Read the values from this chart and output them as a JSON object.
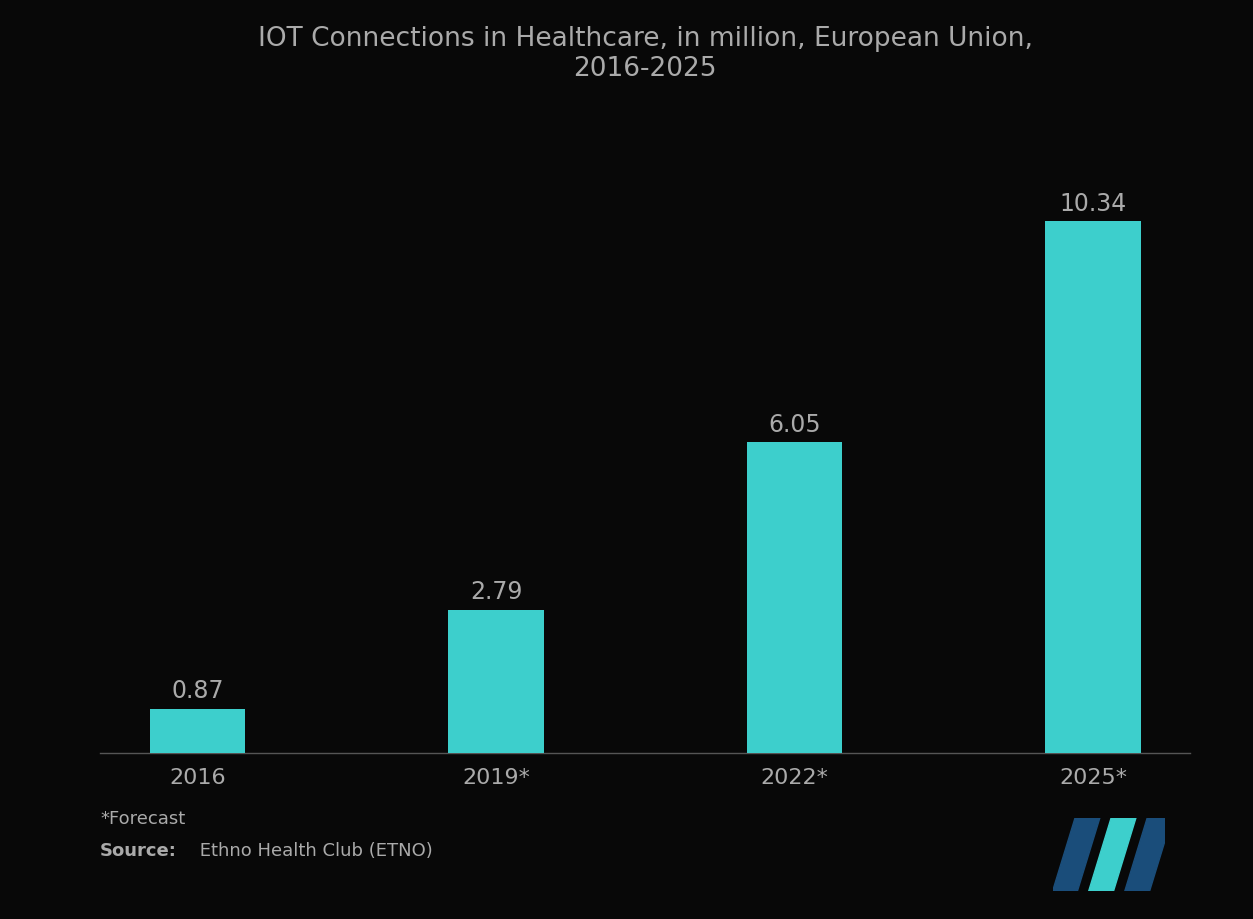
{
  "title": "IOT Connections in Healthcare, in million, European Union,\n2016-2025",
  "categories": [
    "2016",
    "2019*",
    "2022*",
    "2025*"
  ],
  "values": [
    0.87,
    2.79,
    6.05,
    10.34
  ],
  "bar_color": "#3DCFCC",
  "background_color": "#080808",
  "text_color": "#aaaaaa",
  "title_color": "#aaaaaa",
  "value_labels": [
    "0.87",
    "2.79",
    "6.05",
    "10.34"
  ],
  "footnote": "*Forecast",
  "source_bold": "Source:",
  "source_rest": " Ethno Health Club (ETNO)",
  "ylim": [
    0,
    12.5
  ],
  "bar_width": 0.32,
  "label_fontsize": 17,
  "tick_fontsize": 16,
  "title_fontsize": 19,
  "footnote_fontsize": 13,
  "logo_dark": "#1a4d7a",
  "logo_cyan": "#3DCFCC"
}
